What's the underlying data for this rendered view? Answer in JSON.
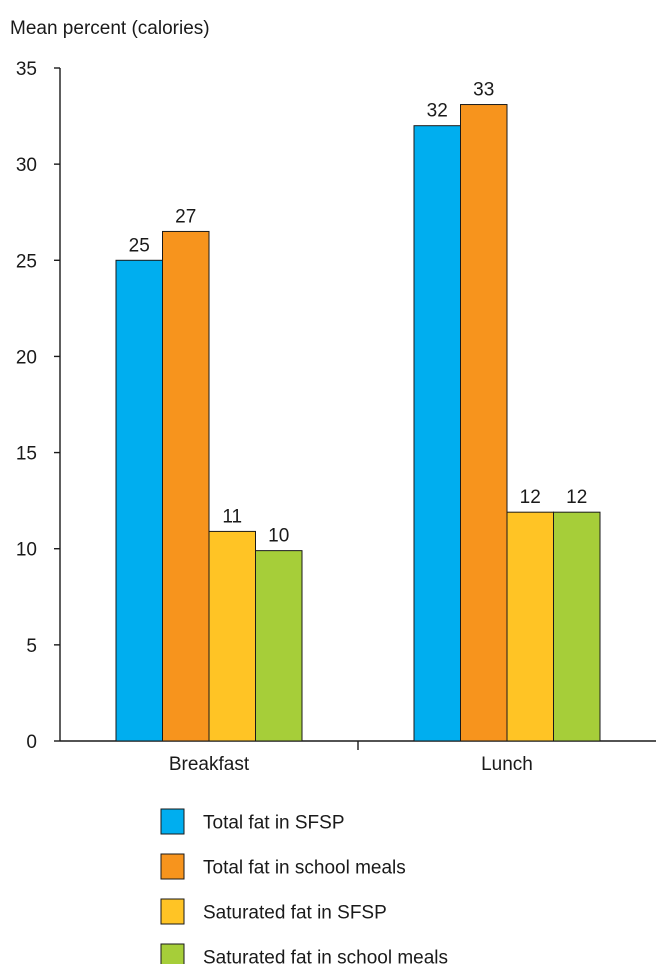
{
  "chart_data": {
    "type": "bar",
    "title": "",
    "ylabel": "Mean percent (calories)",
    "xlabel": "",
    "ylim": [
      0,
      35
    ],
    "yticks": [
      0,
      5,
      10,
      15,
      20,
      25,
      30,
      35
    ],
    "categories": [
      "Breakfast",
      "Lunch"
    ],
    "series": [
      {
        "name": "Total fat in SFSP",
        "color": "#00aeef",
        "values": [
          25,
          32
        ],
        "labels": [
          "25",
          "32"
        ]
      },
      {
        "name": "Total fat in school meals",
        "color": "#f7941d",
        "values": [
          26.5,
          33.1
        ],
        "labels": [
          "27",
          "33"
        ]
      },
      {
        "name": "Saturated fat in SFSP",
        "color": "#ffc425",
        "values": [
          10.9,
          11.9
        ],
        "labels": [
          "11",
          "12"
        ]
      },
      {
        "name": "Saturated fat in school meals",
        "color": "#a6ce39",
        "values": [
          9.9,
          11.9
        ],
        "labels": [
          "10",
          "12"
        ]
      }
    ],
    "grid": false,
    "legend_position": "bottom"
  }
}
